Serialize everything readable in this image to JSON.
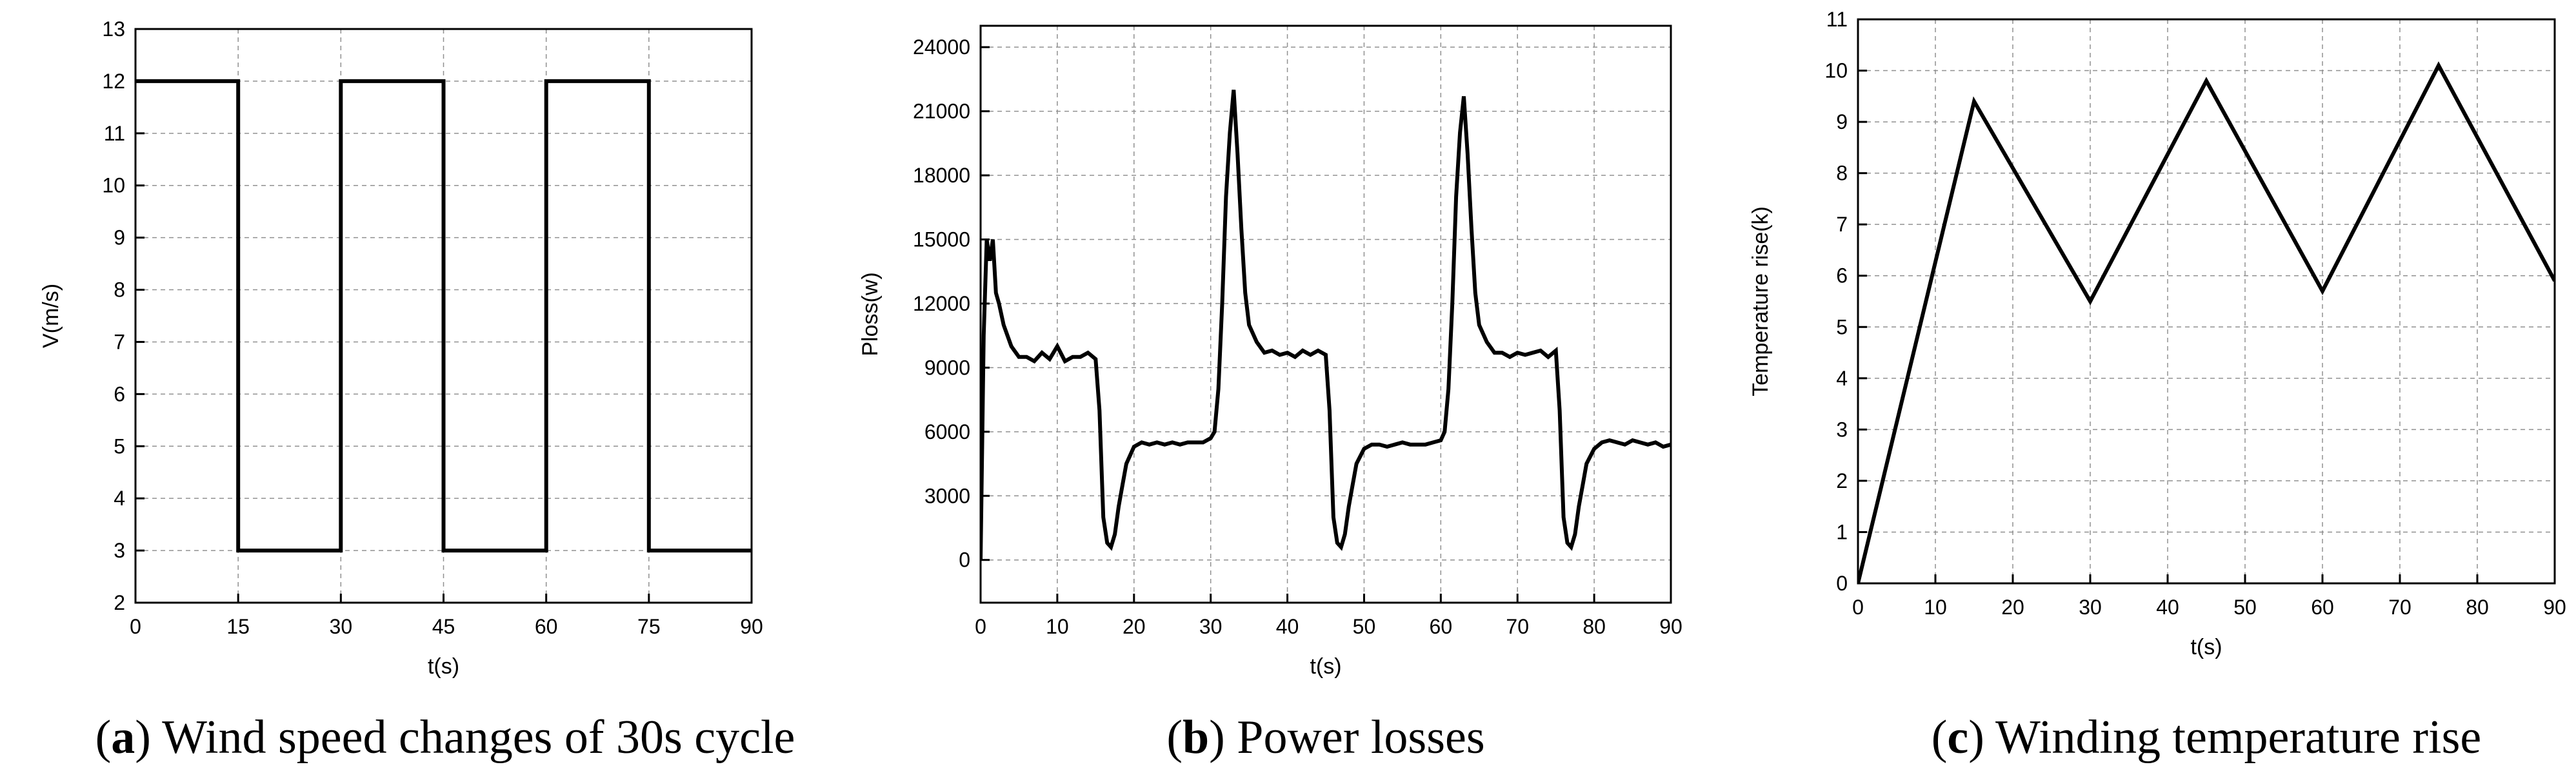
{
  "chart_data": [
    {
      "id": "a",
      "type": "line",
      "caption_letter": "a",
      "caption_text": " Wind speed changes of 30s cycle",
      "xlabel": "t(s)",
      "ylabel": "V(m/s)",
      "xlim": [
        0,
        90
      ],
      "ylim": [
        2,
        13
      ],
      "xticks": [
        0,
        15,
        30,
        45,
        60,
        75,
        90
      ],
      "yticks": [
        2,
        3,
        4,
        5,
        6,
        7,
        8,
        9,
        10,
        11,
        12,
        13
      ],
      "grid": true,
      "series": [
        {
          "x": [
            0,
            15,
            15,
            30,
            30,
            45,
            45,
            60,
            60,
            75,
            75,
            90
          ],
          "y": [
            12,
            12,
            3,
            3,
            12,
            12,
            3,
            3,
            12,
            12,
            3,
            3
          ]
        }
      ]
    },
    {
      "id": "b",
      "type": "line",
      "caption_letter": "b",
      "caption_text": " Power losses",
      "xlabel": "t(s)",
      "ylabel": "Ploss(w)",
      "xlim": [
        0,
        90
      ],
      "ylim": [
        -2000,
        25000
      ],
      "xticks": [
        0,
        10,
        20,
        30,
        40,
        50,
        60,
        70,
        80,
        90
      ],
      "yticks": [
        0,
        3000,
        6000,
        9000,
        12000,
        15000,
        18000,
        21000,
        24000
      ],
      "grid": true,
      "series": [
        {
          "x": [
            0,
            0.4,
            0.8,
            1.2,
            1.6,
            2,
            2.4,
            3,
            4,
            5,
            6,
            7,
            8,
            9,
            10,
            11,
            12,
            13,
            14,
            15,
            15.5,
            16,
            16.5,
            17,
            17.5,
            18,
            18.5,
            19,
            20,
            21,
            22,
            23,
            24,
            25,
            26,
            27,
            28,
            29,
            30,
            30.5,
            31,
            31.5,
            32,
            32.5,
            33,
            33.5,
            34,
            34.5,
            35,
            36,
            37,
            38,
            39,
            40,
            41,
            42,
            43,
            44,
            45,
            45.5,
            46,
            46.5,
            47,
            47.5,
            48,
            48.5,
            49,
            50,
            51,
            52,
            53,
            54,
            55,
            56,
            57,
            58,
            59,
            60,
            60.5,
            61,
            61.5,
            62,
            62.5,
            63,
            63.5,
            64,
            64.5,
            65,
            66,
            67,
            68,
            69,
            70,
            71,
            72,
            73,
            74,
            75,
            75.5,
            76,
            76.5,
            77,
            77.5,
            78,
            78.5,
            79,
            80,
            81,
            82,
            83,
            84,
            85,
            86,
            87,
            88,
            89,
            90
          ],
          "y": [
            0,
            10500,
            15000,
            14000,
            15000,
            12500,
            12000,
            11000,
            10000,
            9500,
            9500,
            9300,
            9700,
            9400,
            10000,
            9300,
            9500,
            9500,
            9700,
            9400,
            7000,
            2000,
            800,
            600,
            1200,
            2500,
            3500,
            4500,
            5300,
            5500,
            5400,
            5500,
            5400,
            5500,
            5400,
            5500,
            5500,
            5500,
            5700,
            6000,
            8000,
            12000,
            17000,
            20000,
            22000,
            19000,
            15500,
            12500,
            11000,
            10200,
            9700,
            9800,
            9600,
            9700,
            9500,
            9800,
            9600,
            9800,
            9600,
            7000,
            2000,
            800,
            600,
            1200,
            2500,
            3500,
            4500,
            5200,
            5400,
            5400,
            5300,
            5400,
            5500,
            5400,
            5400,
            5400,
            5500,
            5600,
            6000,
            8000,
            12000,
            17000,
            20000,
            21700,
            19000,
            15500,
            12500,
            11000,
            10200,
            9700,
            9700,
            9500,
            9700,
            9600,
            9700,
            9800,
            9500,
            9800,
            7000,
            2000,
            800,
            600,
            1200,
            2500,
            3500,
            4500,
            5200,
            5500,
            5600,
            5500,
            5400,
            5600,
            5500,
            5400,
            5500,
            5300,
            5400
          ]
        }
      ]
    },
    {
      "id": "c",
      "type": "line",
      "caption_letter": "c",
      "caption_text": " Winding temperature rise",
      "xlabel": "t(s)",
      "ylabel": "Temperature rise(k)",
      "xlim": [
        0,
        90
      ],
      "ylim": [
        0,
        11
      ],
      "xticks": [
        0,
        10,
        20,
        30,
        40,
        50,
        60,
        70,
        80,
        90
      ],
      "yticks": [
        0,
        1,
        2,
        3,
        4,
        5,
        6,
        7,
        8,
        9,
        10,
        11
      ],
      "grid": true,
      "series": [
        {
          "x": [
            0,
            15,
            30,
            45,
            60,
            75,
            90
          ],
          "y": [
            0,
            9.4,
            5.5,
            9.8,
            5.7,
            10.1,
            5.9
          ]
        }
      ]
    }
  ]
}
